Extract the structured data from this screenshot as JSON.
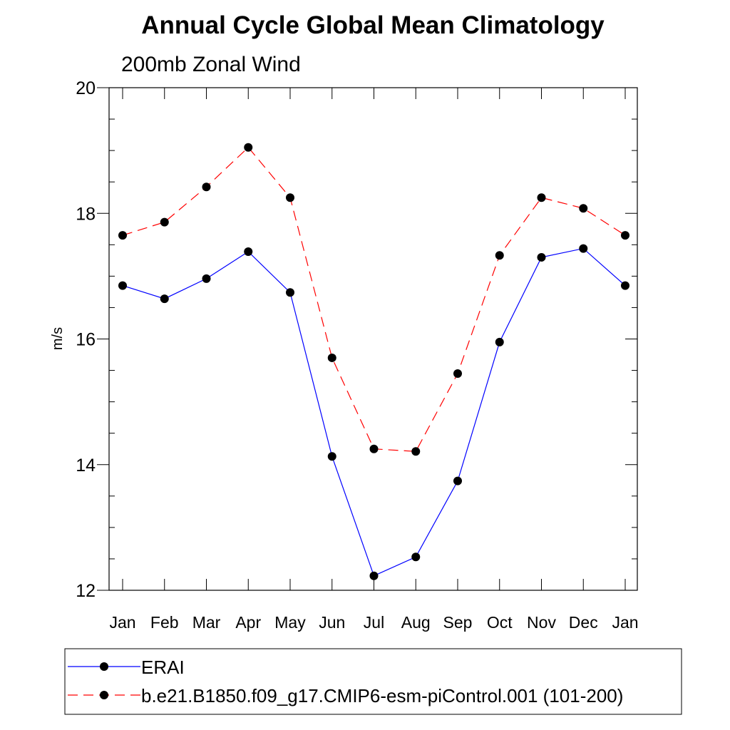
{
  "chart_data": {
    "type": "line",
    "title": "Annual Cycle Global Mean Climatology",
    "subtitle": "200mb Zonal Wind",
    "xlabel": "",
    "ylabel": "m/s",
    "categories": [
      "Jan",
      "Feb",
      "Mar",
      "Apr",
      "May",
      "Jun",
      "Jul",
      "Aug",
      "Sep",
      "Oct",
      "Nov",
      "Dec",
      "Jan"
    ],
    "ylim": [
      12,
      20
    ],
    "yticks": [
      12,
      14,
      16,
      18,
      20
    ],
    "yticks_minor_step": 0.5,
    "grid": false,
    "legend_position": "bottom",
    "series": [
      {
        "name": "ERAI",
        "color": "#0000ff",
        "dash": "solid",
        "marker": "circle",
        "values": [
          16.85,
          16.64,
          16.96,
          17.39,
          16.74,
          14.13,
          12.23,
          12.53,
          13.74,
          15.95,
          17.3,
          17.44,
          16.85
        ]
      },
      {
        "name": "b.e21.B1850.f09_g17.CMIP6-esm-piControl.001 (101-200)",
        "color": "#ff0000",
        "dash": "dashed",
        "marker": "circle",
        "values": [
          17.65,
          17.86,
          18.42,
          19.05,
          18.25,
          15.7,
          14.25,
          14.21,
          15.45,
          17.33,
          18.25,
          18.08,
          17.65
        ]
      }
    ]
  }
}
